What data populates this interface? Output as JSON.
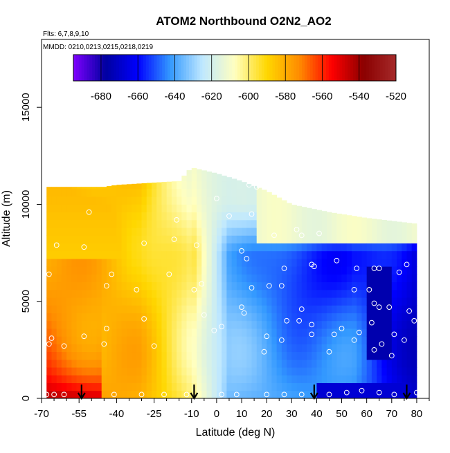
{
  "chart_data": {
    "type": "heatmap",
    "title": "ATOM2 Northbound O2N2_AO2",
    "flights_label": "Flts: 6,7,8,9,10",
    "dates_label": "MMDD: 0210,0213,0215,0218,0219",
    "xlabel": "Latitude (deg N)",
    "ylabel": "Altitude (m)",
    "xlim": [
      -70,
      85
    ],
    "ylim": [
      0,
      18500
    ],
    "x_ticks": [
      "-70",
      "-55",
      "-40",
      "-25",
      "-10",
      "0",
      "10",
      "20",
      "30",
      "40",
      "50",
      "60",
      "70",
      "80"
    ],
    "x_minor_ticks": [
      -65,
      -60,
      -50,
      -45,
      -35,
      -30,
      -20,
      -15,
      -5,
      5,
      15,
      25,
      35,
      45,
      55,
      65,
      75,
      85
    ],
    "y_ticks": [
      "0",
      "5000",
      "10000",
      "15000"
    ],
    "colorbar": {
      "min": -695,
      "max": -520,
      "ticks": [
        "-680",
        "-660",
        "-640",
        "-620",
        "-600",
        "-580",
        "-560",
        "-540",
        "-520"
      ],
      "colors": [
        "#7f00ff",
        "#0000a0",
        "#0000ff",
        "#3399ff",
        "#bfe8ff",
        "#ffffc0",
        "#ffd700",
        "#ff8c00",
        "#ff0000",
        "#8b0000",
        "#a52a2a"
      ]
    },
    "grid_field": {
      "lat_step": 2,
      "alt_step": 400,
      "lat_range": [
        -68,
        80
      ],
      "top_altitude_profile": [
        [
          -68,
          10900
        ],
        [
          -45,
          10900
        ],
        [
          -40,
          11000
        ],
        [
          -15,
          11200
        ],
        [
          -10,
          11900
        ],
        [
          0,
          11600
        ],
        [
          10,
          11200
        ],
        [
          20,
          10700
        ],
        [
          30,
          10000
        ],
        [
          45,
          9600
        ],
        [
          60,
          9300
        ],
        [
          80,
          9000
        ]
      ]
    },
    "obs_points": [
      {
        "lat": -68,
        "alt": 200
      },
      {
        "lat": -65,
        "alt": 200
      },
      {
        "lat": -61,
        "alt": 200
      },
      {
        "lat": -67,
        "alt": 2800
      },
      {
        "lat": -61,
        "alt": 2700
      },
      {
        "lat": -66,
        "alt": 3100
      },
      {
        "lat": -53,
        "alt": 3200
      },
      {
        "lat": -45,
        "alt": 2800
      },
      {
        "lat": -44,
        "alt": 3600
      },
      {
        "lat": -67,
        "alt": 6400
      },
      {
        "lat": -44,
        "alt": 5800
      },
      {
        "lat": -42,
        "alt": 6400
      },
      {
        "lat": -64,
        "alt": 7900
      },
      {
        "lat": -53,
        "alt": 7800
      },
      {
        "lat": -51,
        "alt": 9600
      },
      {
        "lat": -29,
        "alt": 8000
      },
      {
        "lat": -32,
        "alt": 5600
      },
      {
        "lat": -29,
        "alt": 4100
      },
      {
        "lat": -25,
        "alt": 2700
      },
      {
        "lat": -19,
        "alt": 6400
      },
      {
        "lat": -17,
        "alt": 8200
      },
      {
        "lat": -8,
        "alt": 7900
      },
      {
        "lat": -9,
        "alt": 5600
      },
      {
        "lat": -6,
        "alt": 5900
      },
      {
        "lat": -5,
        "alt": 4300
      },
      {
        "lat": 2,
        "alt": 3700
      },
      {
        "lat": -1,
        "alt": 3500
      },
      {
        "lat": -16,
        "alt": 9200
      },
      {
        "lat": -23,
        "alt": 11300
      },
      {
        "lat": 0,
        "alt": 10300
      },
      {
        "lat": 13,
        "alt": 11000
      },
      {
        "lat": 16,
        "alt": 10900
      },
      {
        "lat": 14,
        "alt": 9500
      },
      {
        "lat": 5,
        "alt": 9400
      },
      {
        "lat": 10,
        "alt": 7600
      },
      {
        "lat": 12,
        "alt": 7200
      },
      {
        "lat": 14,
        "alt": 5700
      },
      {
        "lat": 10,
        "alt": 4700
      },
      {
        "lat": 11,
        "alt": 4400
      },
      {
        "lat": 19,
        "alt": 2400
      },
      {
        "lat": 20,
        "alt": 3200
      },
      {
        "lat": 21,
        "alt": 5800
      },
      {
        "lat": 26,
        "alt": 5800
      },
      {
        "lat": 27,
        "alt": 6700
      },
      {
        "lat": 23,
        "alt": 8400
      },
      {
        "lat": 32,
        "alt": 8700
      },
      {
        "lat": 34,
        "alt": 8400
      },
      {
        "lat": 41,
        "alt": 8500
      },
      {
        "lat": 34,
        "alt": 4600
      },
      {
        "lat": 28,
        "alt": 4000
      },
      {
        "lat": 33,
        "alt": 4000
      },
      {
        "lat": 38,
        "alt": 3800
      },
      {
        "lat": 38,
        "alt": 3300
      },
      {
        "lat": 26,
        "alt": 3000
      },
      {
        "lat": 38,
        "alt": 6900
      },
      {
        "lat": 39,
        "alt": 6800
      },
      {
        "lat": 48,
        "alt": 7100
      },
      {
        "lat": 50,
        "alt": 3600
      },
      {
        "lat": 47,
        "alt": 3300
      },
      {
        "lat": 45,
        "alt": 2400
      },
      {
        "lat": 56,
        "alt": 6700
      },
      {
        "lat": 63,
        "alt": 6700
      },
      {
        "lat": 65,
        "alt": 6700
      },
      {
        "lat": 55,
        "alt": 5600
      },
      {
        "lat": 61,
        "alt": 5600
      },
      {
        "lat": 63,
        "alt": 4900
      },
      {
        "lat": 69,
        "alt": 4700
      },
      {
        "lat": 65,
        "alt": 4700
      },
      {
        "lat": 73,
        "alt": 6500
      },
      {
        "lat": 76,
        "alt": 6900
      },
      {
        "lat": 77,
        "alt": 4500
      },
      {
        "lat": 79,
        "alt": 4000
      },
      {
        "lat": 62,
        "alt": 3900
      },
      {
        "lat": 57,
        "alt": 3400
      },
      {
        "lat": 55,
        "alt": 3000
      },
      {
        "lat": 63,
        "alt": 2500
      },
      {
        "lat": 66,
        "alt": 2800
      },
      {
        "lat": 71,
        "alt": 3300
      },
      {
        "lat": 75,
        "alt": 3000
      },
      {
        "lat": 70,
        "alt": 2200
      },
      {
        "lat": 27,
        "alt": 200
      },
      {
        "lat": 34,
        "alt": 200
      },
      {
        "lat": 20,
        "alt": 200
      },
      {
        "lat": 45,
        "alt": 200
      },
      {
        "lat": 52,
        "alt": 300
      },
      {
        "lat": 58,
        "alt": 400
      },
      {
        "lat": 65,
        "alt": 300
      },
      {
        "lat": 71,
        "alt": 200
      },
      {
        "lat": 80,
        "alt": 300
      },
      {
        "lat": -41,
        "alt": 200
      },
      {
        "lat": -30,
        "alt": 200
      },
      {
        "lat": -21,
        "alt": 200
      },
      {
        "lat": -12,
        "alt": 200
      },
      {
        "lat": 2,
        "alt": 200
      },
      {
        "lat": 8,
        "alt": 200
      }
    ],
    "arrows_at_latitude": [
      -54,
      -9,
      39,
      76
    ]
  }
}
